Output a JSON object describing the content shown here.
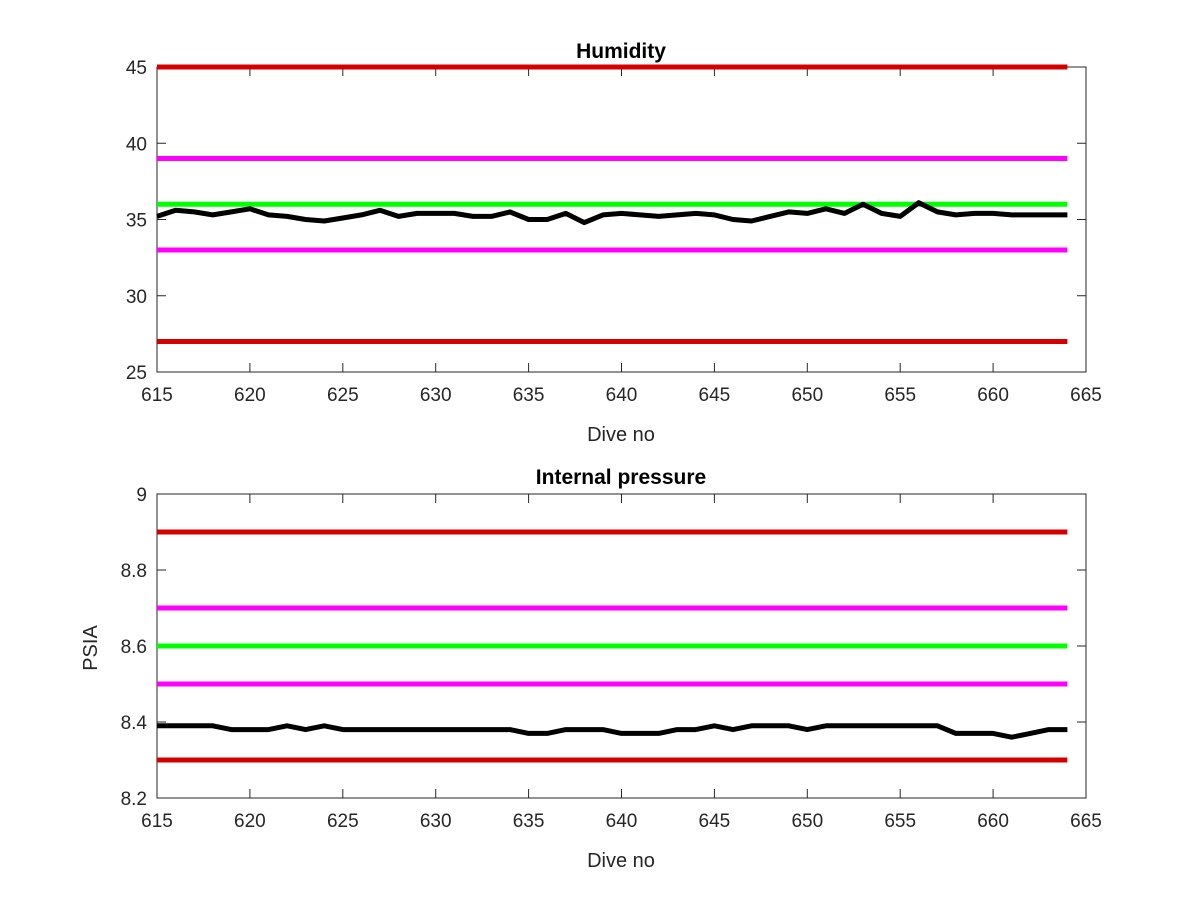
{
  "chart_data": [
    {
      "type": "line",
      "title": "Humidity",
      "xlabel": "Dive no",
      "ylabel": "",
      "xlim": [
        615,
        665
      ],
      "ylim": [
        25,
        45
      ],
      "xticks": [
        615,
        620,
        625,
        630,
        635,
        640,
        645,
        650,
        655,
        660,
        665
      ],
      "yticks": [
        25,
        30,
        35,
        40,
        45
      ],
      "grid": false,
      "series": [
        {
          "color": "#d40000",
          "x": [
            615,
            664
          ],
          "y": [
            45,
            45
          ]
        },
        {
          "color": "#ff00ff",
          "x": [
            615,
            664
          ],
          "y": [
            39,
            39
          ]
        },
        {
          "color": "#00ff00",
          "x": [
            615,
            664
          ],
          "y": [
            36,
            36
          ]
        },
        {
          "color": "#ff00ff",
          "x": [
            615,
            664
          ],
          "y": [
            33,
            33
          ]
        },
        {
          "color": "#d40000",
          "x": [
            615,
            664
          ],
          "y": [
            27,
            27
          ]
        },
        {
          "color": "#000000",
          "x": [
            615,
            616,
            617,
            618,
            619,
            620,
            621,
            622,
            623,
            624,
            625,
            626,
            627,
            628,
            629,
            630,
            631,
            632,
            633,
            634,
            635,
            636,
            637,
            638,
            639,
            640,
            641,
            642,
            643,
            644,
            645,
            646,
            647,
            648,
            649,
            650,
            651,
            652,
            653,
            654,
            655,
            656,
            657,
            658,
            659,
            660,
            661,
            662,
            663,
            664
          ],
          "y": [
            35.2,
            35.6,
            35.5,
            35.3,
            35.5,
            35.7,
            35.3,
            35.2,
            35.0,
            34.9,
            35.1,
            35.3,
            35.6,
            35.2,
            35.4,
            35.4,
            35.4,
            35.2,
            35.2,
            35.5,
            35.0,
            35.0,
            35.4,
            34.8,
            35.3,
            35.4,
            35.3,
            35.2,
            35.3,
            35.4,
            35.3,
            35.0,
            34.9,
            35.2,
            35.5,
            35.4,
            35.7,
            35.4,
            36.0,
            35.4,
            35.2,
            36.1,
            35.5,
            35.3,
            35.4,
            35.4,
            35.3,
            35.3,
            35.3,
            35.3
          ]
        }
      ]
    },
    {
      "type": "line",
      "title": "Internal pressure",
      "xlabel": "Dive no",
      "ylabel": "PSIA",
      "xlim": [
        615,
        665
      ],
      "ylim": [
        8.2,
        9
      ],
      "xticks": [
        615,
        620,
        625,
        630,
        635,
        640,
        645,
        650,
        655,
        660,
        665
      ],
      "yticks": [
        8.2,
        8.4,
        8.6,
        8.8,
        9
      ],
      "ytick_labels": [
        "8.2",
        "8.4",
        "8.6",
        "8.8",
        "9"
      ],
      "grid": false,
      "series": [
        {
          "color": "#d40000",
          "x": [
            615,
            664
          ],
          "y": [
            8.9,
            8.9
          ]
        },
        {
          "color": "#ff00ff",
          "x": [
            615,
            664
          ],
          "y": [
            8.7,
            8.7
          ]
        },
        {
          "color": "#00ff00",
          "x": [
            615,
            664
          ],
          "y": [
            8.6,
            8.6
          ]
        },
        {
          "color": "#ff00ff",
          "x": [
            615,
            664
          ],
          "y": [
            8.5,
            8.5
          ]
        },
        {
          "color": "#d40000",
          "x": [
            615,
            664
          ],
          "y": [
            8.3,
            8.3
          ]
        },
        {
          "color": "#000000",
          "x": [
            615,
            616,
            617,
            618,
            619,
            620,
            621,
            622,
            623,
            624,
            625,
            626,
            627,
            628,
            629,
            630,
            631,
            632,
            633,
            634,
            635,
            636,
            637,
            638,
            639,
            640,
            641,
            642,
            643,
            644,
            645,
            646,
            647,
            648,
            649,
            650,
            651,
            652,
            653,
            654,
            655,
            656,
            657,
            658,
            659,
            660,
            661,
            662,
            663,
            664
          ],
          "y": [
            8.39,
            8.39,
            8.39,
            8.39,
            8.38,
            8.38,
            8.38,
            8.39,
            8.38,
            8.39,
            8.38,
            8.38,
            8.38,
            8.38,
            8.38,
            8.38,
            8.38,
            8.38,
            8.38,
            8.38,
            8.37,
            8.37,
            8.38,
            8.38,
            8.38,
            8.37,
            8.37,
            8.37,
            8.38,
            8.38,
            8.39,
            8.38,
            8.39,
            8.39,
            8.39,
            8.38,
            8.39,
            8.39,
            8.39,
            8.39,
            8.39,
            8.39,
            8.39,
            8.37,
            8.37,
            8.37,
            8.36,
            8.37,
            8.38,
            8.38
          ]
        }
      ]
    }
  ]
}
